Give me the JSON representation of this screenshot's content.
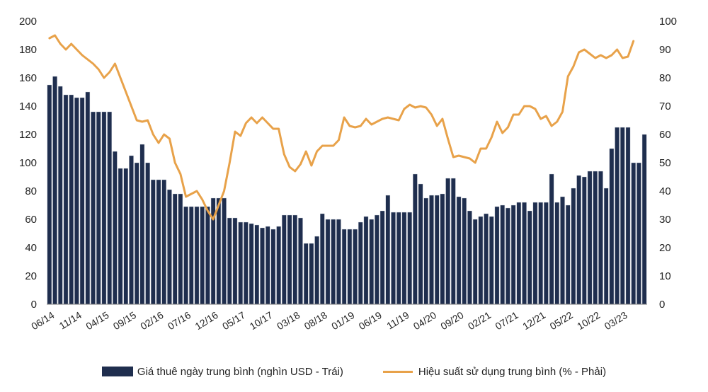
{
  "chart_data": {
    "type": "bar+line",
    "title": "",
    "x_tick_labels": [
      "06/14",
      "11/14",
      "04/15",
      "09/15",
      "02/16",
      "07/16",
      "12/16",
      "05/17",
      "10/17",
      "03/18",
      "08/18",
      "01/19",
      "06/19",
      "11/19",
      "04/20",
      "09/20",
      "02/21",
      "07/21",
      "12/21",
      "05/22",
      "10/22",
      "03/23"
    ],
    "y_left": {
      "ylim": [
        0,
        200
      ],
      "ticks": [
        0,
        20,
        40,
        60,
        80,
        100,
        120,
        140,
        160,
        180,
        200
      ]
    },
    "y_right": {
      "ylim": [
        0,
        100
      ],
      "ticks": [
        0,
        10,
        20,
        30,
        40,
        50,
        60,
        70,
        80,
        90,
        100
      ]
    },
    "grid": false,
    "legend_position": "bottom",
    "series": [
      {
        "name": "Giá thuê ngày trung bình (nghìn USD - Trái)",
        "type": "bar",
        "axis": "left",
        "color": "#1f2e4e",
        "values": [
          155,
          161,
          154,
          148,
          148,
          146,
          146,
          150,
          136,
          136,
          136,
          136,
          108,
          96,
          96,
          105,
          100,
          113,
          100,
          88,
          88,
          88,
          81,
          78,
          78,
          69,
          69,
          69,
          69,
          69,
          75,
          75,
          75,
          61,
          61,
          58,
          58,
          57,
          56,
          54,
          55,
          53,
          55,
          63,
          63,
          63,
          61,
          43,
          43,
          48,
          64,
          60,
          60,
          60,
          53,
          53,
          53,
          58,
          62,
          60,
          63,
          66,
          77,
          65,
          65,
          65,
          65,
          92,
          85,
          75,
          77,
          77,
          78,
          89,
          89,
          76,
          75,
          66,
          60,
          62,
          64,
          62,
          69,
          70,
          68,
          70,
          72,
          72,
          66,
          72,
          72,
          72,
          92,
          72,
          76,
          70,
          82,
          91,
          90,
          94,
          94,
          94,
          82,
          110,
          125,
          125,
          125,
          100,
          100,
          120
        ]
      },
      {
        "name": "Hiệu suất sử dụng trung bình (% - Phải)",
        "type": "line",
        "axis": "right",
        "color": "#e8a24a",
        "values": [
          94,
          95,
          92,
          90,
          92,
          90,
          88,
          86.5,
          85,
          83,
          80,
          82,
          85,
          80,
          75,
          70,
          65,
          64.5,
          65,
          60,
          57,
          60,
          58.5,
          50,
          46,
          38,
          39,
          40,
          37,
          33,
          30,
          35,
          40,
          50,
          61,
          59.5,
          64,
          66,
          64,
          66,
          64,
          62,
          62,
          53,
          48.5,
          47,
          49.5,
          54,
          49,
          54,
          56,
          56,
          56,
          58,
          66,
          63,
          62.5,
          63,
          65.5,
          63.5,
          64.5,
          65.5,
          66,
          65.5,
          65,
          69,
          70.5,
          69.5,
          70,
          69.5,
          67,
          63,
          65.5,
          58.5,
          52,
          52.5,
          52,
          51.5,
          50,
          55,
          55,
          59,
          64.5,
          60.5,
          62.5,
          67,
          67,
          70,
          70,
          69,
          65.5,
          66.5,
          63,
          64.5,
          68,
          80.5,
          84,
          89,
          90,
          88.5,
          87,
          88,
          87,
          88,
          90,
          87,
          87.5,
          93
        ]
      }
    ]
  },
  "legend": {
    "bar_label": "Giá thuê ngày trung bình (nghìn USD - Trái)",
    "line_label": "Hiệu suất sử dụng trung bình (% - Phải)"
  }
}
